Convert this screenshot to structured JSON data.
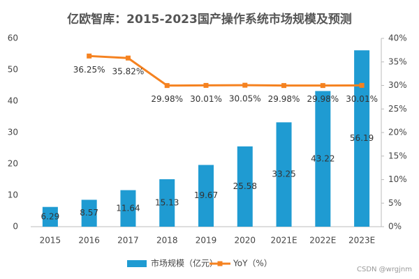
{
  "chart_data": {
    "type": "bar",
    "title": "亿欧智库：2015-2023国产操作系统市场规模及预测",
    "categories": [
      "2015",
      "2016",
      "2017",
      "2018",
      "2019",
      "2020",
      "2021E",
      "2022E",
      "2023E"
    ],
    "series": [
      {
        "name": "市场规模（亿元）",
        "color": "#1f9bd2",
        "values": [
          6.29,
          8.57,
          11.64,
          15.13,
          19.67,
          25.58,
          33.25,
          43.22,
          56.19
        ]
      },
      {
        "name": "YoY（%）",
        "type": "line",
        "axis": "y2",
        "color": "#f58220",
        "values": [
          null,
          36.25,
          35.82,
          29.98,
          30.01,
          30.05,
          29.98,
          29.98,
          30.01
        ],
        "value_labels": [
          null,
          "36.25%",
          "35.82%",
          "29.98%",
          "30.01%",
          "30.05%",
          "29.98%",
          "29.98%",
          "30.01%"
        ]
      }
    ],
    "ylim": [
      0,
      60
    ],
    "yticks": [
      0,
      10,
      20,
      30,
      40,
      50,
      60
    ],
    "y2lim": [
      0,
      40
    ],
    "y2ticks": [
      {
        "value": 0,
        "label": "0%"
      },
      {
        "value": 5,
        "label": "5%"
      },
      {
        "value": 10,
        "label": "10%"
      },
      {
        "value": 15,
        "label": "15%"
      },
      {
        "value": 20,
        "label": "20%"
      },
      {
        "value": 25,
        "label": "25%"
      },
      {
        "value": 30,
        "label": "30%"
      },
      {
        "value": 35,
        "label": "35%"
      },
      {
        "value": 40,
        "label": "40%"
      }
    ],
    "legend": "bottom",
    "watermark": "CSDN @wrgjnm"
  }
}
